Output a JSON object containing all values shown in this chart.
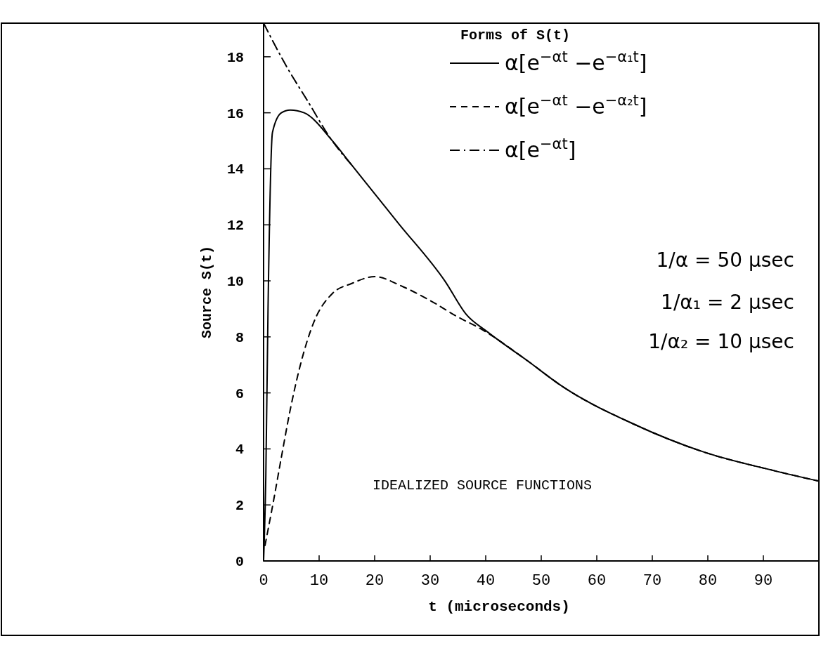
{
  "chart_data": {
    "type": "line",
    "xlabel": "t (microseconds)",
    "ylabel": "Source S(t)",
    "legend_title": "Forms of S(t)",
    "legend": "top right",
    "grid": false,
    "xlim": [
      0,
      100
    ],
    "xticks": [
      0,
      10,
      20,
      30,
      40,
      50,
      60,
      70,
      80,
      90
    ],
    "ylim": [
      0,
      19.2
    ],
    "yticks": [
      0,
      2,
      4,
      6,
      8,
      10,
      12,
      14,
      16,
      18
    ],
    "series": [
      {
        "name": "α[e$^{−αt}$ −e$^{−α₁t}$]",
        "color": "#000000",
        "line_style": "solid",
        "x": [
          0,
          0.4,
          0.8,
          1.6,
          3.2,
          4.8,
          7.3,
          12.4,
          15.8,
          24.3,
          32.7,
          36.5,
          40.3,
          47.5,
          53.8,
          66.5,
          79.1,
          91.8,
          100
        ],
        "values": [
          0,
          3,
          9,
          15.3,
          16.0,
          16.1,
          16.0,
          15.0,
          14.15,
          12.05,
          9.98,
          8.8,
          8.18,
          7.15,
          6.23,
          4.9,
          3.9,
          3.23,
          2.85
        ]
      },
      {
        "name": "α[e$^{−αt}$ −e$^{−α₂t}$]",
        "color": "#000000",
        "line_style": "dashed",
        "x": [
          0.25,
          1.7,
          3.2,
          4.8,
          6.6,
          9.1,
          12.4,
          15.8,
          20,
          25,
          30.6,
          34.8,
          39,
          47.5,
          53.8,
          66.5,
          79.1,
          91.8,
          100
        ],
        "values": [
          0.55,
          2.05,
          3.7,
          5.4,
          6.98,
          8.55,
          9.55,
          9.9,
          10.15,
          9.8,
          9.23,
          8.73,
          8.3,
          7.15,
          6.23,
          4.9,
          3.9,
          3.23,
          2.85
        ]
      },
      {
        "name": "α[e$^{−αt}$]",
        "color": "#000000",
        "line_style": "dashdot",
        "x": [
          0,
          4,
          8,
          12,
          15.8
        ],
        "values": [
          19.2,
          17.7,
          16.4,
          15.1,
          14.15
        ]
      }
    ],
    "annotations": [
      "1/α = 50 μsec",
      "1/α₁ = 2 μsec",
      "1/α₂ = 10 μsec",
      "IDEALIZED SOURCE FUNCTIONS"
    ]
  }
}
